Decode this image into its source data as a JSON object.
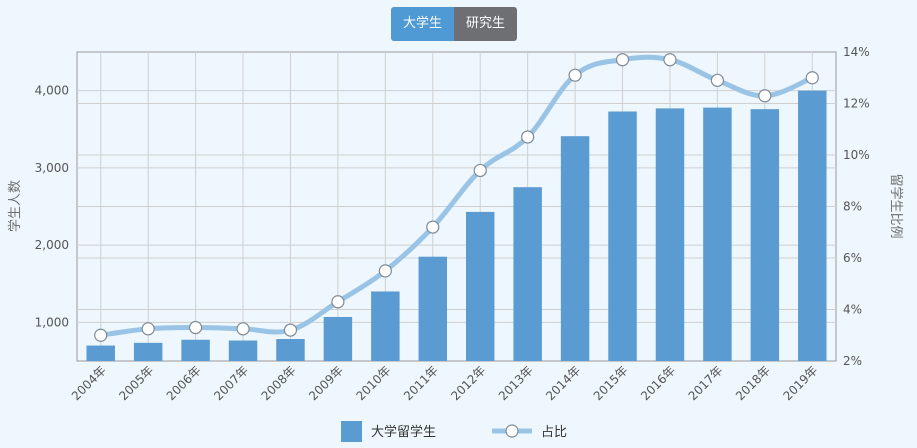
{
  "tabs": [
    {
      "label": "大学生",
      "active": true
    },
    {
      "label": "研究生",
      "active": false
    }
  ],
  "colors": {
    "bar": "#5a9bd1",
    "line": "#99c4e6",
    "grid": "#cfcfcf",
    "background": "#eef7fd",
    "tab_active": "#4f9ad4",
    "tab_inactive": "#6d6f73"
  },
  "chart_data": {
    "type": "bar+line",
    "categories": [
      "2004年",
      "2005年",
      "2006年",
      "2007年",
      "2008年",
      "2009年",
      "2010年",
      "2011年",
      "2012年",
      "2013年",
      "2014年",
      "2015年",
      "2016年",
      "2017年",
      "2018年",
      "2019年"
    ],
    "series": [
      {
        "name": "大学留学生",
        "type": "bar",
        "axis": "left",
        "values": [
          700,
          735,
          775,
          765,
          785,
          1070,
          1400,
          1850,
          2430,
          2750,
          3410,
          3730,
          3770,
          3780,
          3760,
          4000
        ]
      },
      {
        "name": "占比",
        "type": "line",
        "axis": "right",
        "values": [
          3.0,
          3.25,
          3.3,
          3.25,
          3.2,
          4.3,
          5.5,
          7.2,
          9.4,
          10.7,
          13.1,
          13.7,
          13.7,
          12.9,
          12.3,
          13.0
        ]
      }
    ],
    "ylabel": "学生人数",
    "y2label": "留学生比例",
    "ylim": [
      500,
      4500
    ],
    "y2lim": [
      2,
      14
    ],
    "yticks": [
      "1,000",
      "2,000",
      "3,000",
      "4,000"
    ],
    "yticks_values": [
      1000,
      2000,
      3000,
      4000
    ],
    "y2ticks": [
      "2%",
      "4%",
      "6%",
      "8%",
      "10%",
      "12%",
      "14%"
    ],
    "y2ticks_values": [
      2,
      4,
      6,
      8,
      10,
      12,
      14
    ],
    "grid": true,
    "legend_position": "bottom-center"
  }
}
